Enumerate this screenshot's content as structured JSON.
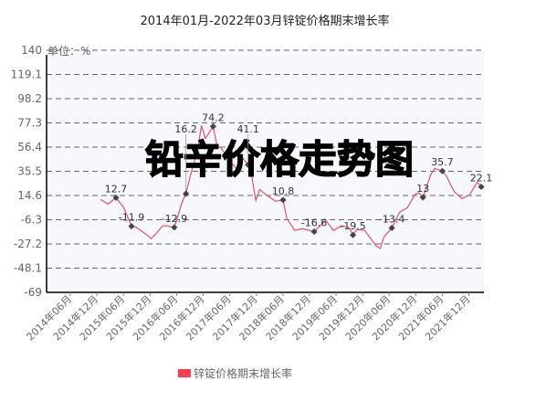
{
  "chart_data": {
    "type": "line",
    "title": "2014年01月-2022年03月锌锭价格期末增长率",
    "unit_label": "单位：%",
    "watermark": "铅辛价格走势图",
    "ylim": [
      -69,
      140
    ],
    "y_ticks": [
      "140",
      "119.1",
      "98.2",
      "77.3",
      "56.4",
      "35.5",
      "14.6",
      "-6.3",
      "-27.2",
      "-48.1",
      "-69"
    ],
    "x_ticks": [
      "2014年06月",
      "2014年12月",
      "2015年06月",
      "2015年12月",
      "2016年06月",
      "2016年12月",
      "2017年06月",
      "2017年12月",
      "2018年06月",
      "2018年12月",
      "2019年06月",
      "2019年12月",
      "2020年06月",
      "2020年12月",
      "2021年06月",
      "2021年12月"
    ],
    "x_range": [
      "2014-01",
      "2022-03"
    ],
    "grid": "horizontal dashed",
    "legend_position": "bottom",
    "colors": {
      "line": "#e8506a",
      "marker": "#444444",
      "legend": "#ff3b50",
      "plot_bg": "#f7f8fe"
    },
    "series": [
      {
        "name": "锌锭价格期末增长率",
        "points": [
          {
            "x": "2014-01",
            "y": 11.2
          },
          {
            "x": "2014-03",
            "y": 7.2
          },
          {
            "x": "2014-05",
            "y": 12.7,
            "label": "12.7"
          },
          {
            "x": "2014-07",
            "y": 4.1
          },
          {
            "x": "2014-09",
            "y": -11.9,
            "label": "-11.9"
          },
          {
            "x": "2014-10",
            "y": -12.4
          },
          {
            "x": "2015-01",
            "y": -19.5
          },
          {
            "x": "2015-02",
            "y": -22.6
          },
          {
            "x": "2015-03",
            "y": -19.5
          },
          {
            "x": "2015-05",
            "y": -11.6
          },
          {
            "x": "2015-06",
            "y": -11.6
          },
          {
            "x": "2015-08",
            "y": -12.9,
            "label": "-12.9"
          },
          {
            "x": "2015-10",
            "y": 8.8
          },
          {
            "x": "2015-11",
            "y": 16.2,
            "label": "16.2"
          },
          {
            "x": "2015-12",
            "y": 30
          },
          {
            "x": "2016-02",
            "y": 53.6
          },
          {
            "x": "2016-03",
            "y": 75
          },
          {
            "x": "2016-04",
            "y": 63.8
          },
          {
            "x": "2016-06",
            "y": 74.2,
            "label": "74.2"
          },
          {
            "x": "2016-07",
            "y": 57.5
          },
          {
            "x": "2016-08",
            "y": 56
          },
          {
            "x": "2016-10",
            "y": 45.7
          },
          {
            "x": "2016-12",
            "y": 37.9
          },
          {
            "x": "2017-01",
            "y": 49.7
          },
          {
            "x": "2017-03",
            "y": 41.1,
            "label": "41.1"
          },
          {
            "x": "2017-04",
            "y": 30
          },
          {
            "x": "2017-05",
            "y": 10.4
          },
          {
            "x": "2017-06",
            "y": 19.8
          },
          {
            "x": "2017-08",
            "y": 14.3
          },
          {
            "x": "2017-10",
            "y": 9.6
          },
          {
            "x": "2017-12",
            "y": 10.8,
            "label": "10.8"
          },
          {
            "x": "2018-01",
            "y": -5.3
          },
          {
            "x": "2018-03",
            "y": -15.5
          },
          {
            "x": "2018-05",
            "y": -14
          },
          {
            "x": "2018-08",
            "y": -16.6,
            "label": "-16.6"
          },
          {
            "x": "2018-11",
            "y": -6.9
          },
          {
            "x": "2019-01",
            "y": -15.5
          },
          {
            "x": "2019-03",
            "y": -11.6
          },
          {
            "x": "2019-05",
            "y": -13.2
          },
          {
            "x": "2019-06",
            "y": -19.5,
            "label": "-19.5"
          },
          {
            "x": "2019-07",
            "y": -14.8
          },
          {
            "x": "2019-09",
            "y": -15.5
          },
          {
            "x": "2019-12",
            "y": -28.9
          },
          {
            "x": "2020-01",
            "y": -31.2
          },
          {
            "x": "2020-02",
            "y": -21
          },
          {
            "x": "2020-04",
            "y": -13.4,
            "label": "-13.4"
          },
          {
            "x": "2020-06",
            "y": 0.2
          },
          {
            "x": "2020-08",
            "y": 4.1
          },
          {
            "x": "2020-10",
            "y": 15.9
          },
          {
            "x": "2020-11",
            "y": 16.7
          },
          {
            "x": "2020-12",
            "y": 13,
            "label": "13"
          },
          {
            "x": "2021-02",
            "y": 32.4
          },
          {
            "x": "2021-03",
            "y": 37.9
          },
          {
            "x": "2021-05",
            "y": 35.7,
            "label": "35.7"
          },
          {
            "x": "2021-06",
            "y": 31.6
          },
          {
            "x": "2021-08",
            "y": 18.2
          },
          {
            "x": "2021-10",
            "y": 12
          },
          {
            "x": "2021-12",
            "y": 15.1
          },
          {
            "x": "2022-02",
            "y": 26.1
          },
          {
            "x": "2022-03",
            "y": 22.1,
            "label": "22.1"
          }
        ]
      }
    ]
  }
}
